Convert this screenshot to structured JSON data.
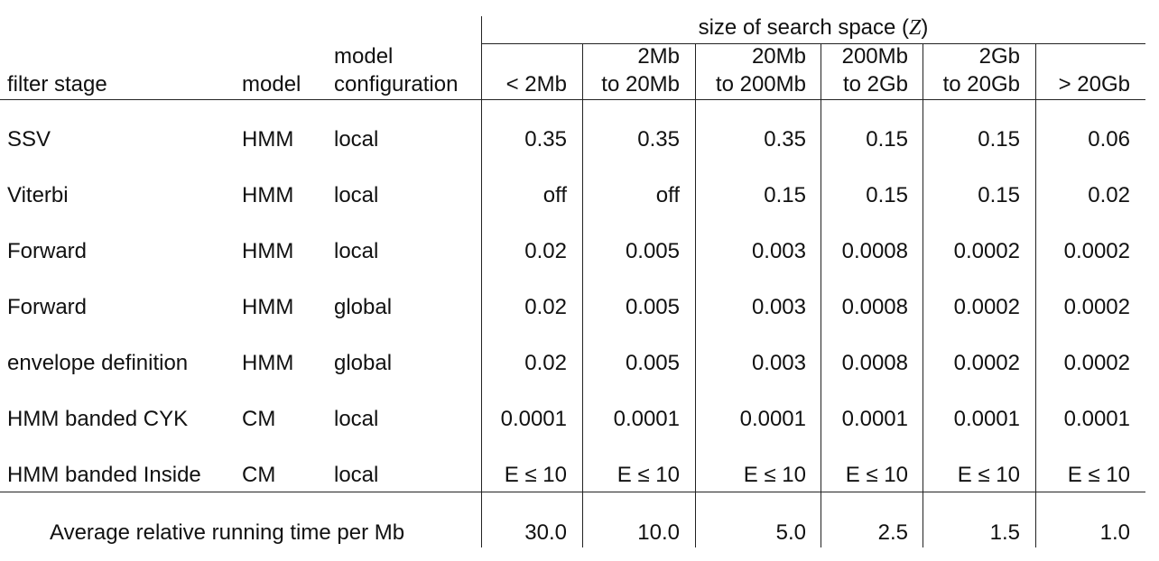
{
  "header": {
    "group_prefix": "size of search space (",
    "group_symbol": "Z",
    "group_suffix": ")",
    "filter_stage": "filter stage",
    "model": "model",
    "model_config_line1": "model",
    "model_config_line2": "configuration",
    "size_columns": [
      {
        "line1": "",
        "line2": "< 2Mb"
      },
      {
        "line1": "2Mb",
        "line2": "to 20Mb"
      },
      {
        "line1": "20Mb",
        "line2": "to 200Mb"
      },
      {
        "line1": "200Mb",
        "line2": "to 2Gb"
      },
      {
        "line1": "2Gb",
        "line2": "to 20Gb"
      },
      {
        "line1": "",
        "line2": "> 20Gb"
      }
    ]
  },
  "rows": [
    {
      "stage": "SSV",
      "model": "HMM",
      "config": "local",
      "values": [
        "0.35",
        "0.35",
        "0.35",
        "0.15",
        "0.15",
        "0.06"
      ]
    },
    {
      "stage": "Viterbi",
      "model": "HMM",
      "config": "local",
      "values": [
        "off",
        "off",
        "0.15",
        "0.15",
        "0.15",
        "0.02"
      ]
    },
    {
      "stage": "Forward",
      "model": "HMM",
      "config": "local",
      "values": [
        "0.02",
        "0.005",
        "0.003",
        "0.0008",
        "0.0002",
        "0.0002"
      ]
    },
    {
      "stage": "Forward",
      "model": "HMM",
      "config": "global",
      "values": [
        "0.02",
        "0.005",
        "0.003",
        "0.0008",
        "0.0002",
        "0.0002"
      ]
    },
    {
      "stage": "envelope definition",
      "model": "HMM",
      "config": "global",
      "values": [
        "0.02",
        "0.005",
        "0.003",
        "0.0008",
        "0.0002",
        "0.0002"
      ]
    },
    {
      "stage": "HMM banded CYK",
      "model": "CM",
      "config": "local",
      "values": [
        "0.0001",
        "0.0001",
        "0.0001",
        "0.0001",
        "0.0001",
        "0.0001"
      ]
    },
    {
      "stage": "HMM banded Inside",
      "model": "CM",
      "config": "local",
      "values": [
        "E ≤ 10",
        "E ≤ 10",
        "E ≤ 10",
        "E ≤ 10",
        "E ≤ 10",
        "E ≤ 10"
      ]
    }
  ],
  "footer": {
    "label": "Average relative running time per Mb",
    "values": [
      "30.0",
      "10.0",
      "5.0",
      "2.5",
      "1.5",
      "1.0"
    ]
  }
}
